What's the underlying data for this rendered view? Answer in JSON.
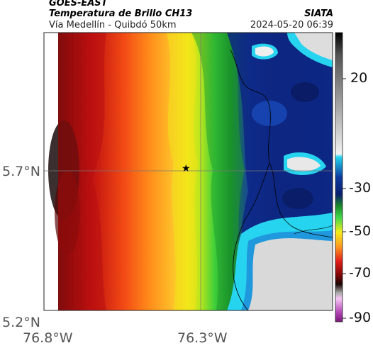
{
  "header": {
    "satellite": "GOES-EAST",
    "product": "Temperatura de Brillo CH13",
    "region": "Vía Medellín - Quibdó 50km",
    "agency": "SIATA",
    "timestamp": "2024-05-20 06:39"
  },
  "axes": {
    "y_ticks": [
      "5.7°N",
      "5.2°N"
    ],
    "x_ticks": [
      "76.8°W",
      "76.3°W"
    ]
  },
  "colorbar": {
    "labels": [
      "20",
      "-30",
      "-50",
      "-70",
      "-90"
    ],
    "range": [
      -95,
      35
    ],
    "unit_scale": "brightness temperature"
  },
  "marker": {
    "symbol": "★"
  },
  "colors": {
    "very_cold": "#b040b0",
    "cold_black": "#1a0a0a",
    "dark_red": "#8b0000",
    "red": "#e8201a",
    "orange": "#ff8a1a",
    "yellow": "#f2e21a",
    "green": "#2fcf3a",
    "dark_green": "#137a1e",
    "blue": "#1c3fa8",
    "navy": "#0a1f6e",
    "cyan": "#27d4ef",
    "warm_gray": "#dcdcdc"
  }
}
